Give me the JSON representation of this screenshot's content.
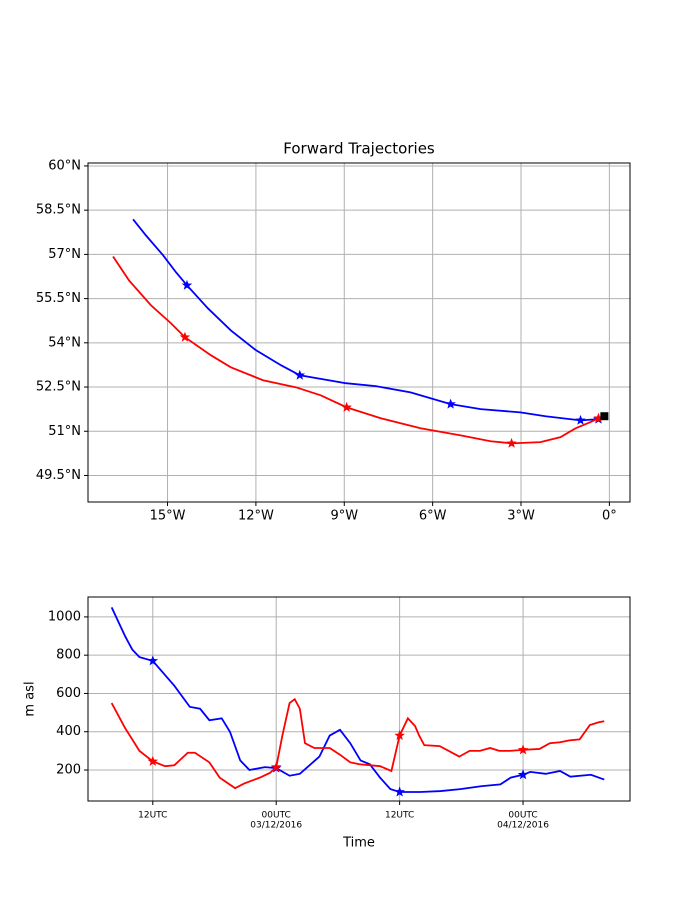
{
  "chart_data": [
    {
      "type": "line",
      "title": "Forward Trajectories",
      "xlim": [
        -17.7,
        0.7
      ],
      "xticks": [
        {
          "value": -15,
          "label": "15°W"
        },
        {
          "value": -12,
          "label": "12°W"
        },
        {
          "value": -9,
          "label": "9°W"
        },
        {
          "value": -6,
          "label": "6°W"
        },
        {
          "value": -3,
          "label": "3°W"
        },
        {
          "value": 0,
          "label": "0°"
        }
      ],
      "ylim": [
        48.6,
        60.1
      ],
      "yticks": [
        {
          "value": 49.5,
          "label": "49.5°N"
        },
        {
          "value": 51,
          "label": "51°N"
        },
        {
          "value": 52.5,
          "label": "52.5°N"
        },
        {
          "value": 54,
          "label": "54°N"
        },
        {
          "value": 55.5,
          "label": "55.5°N"
        },
        {
          "value": 57,
          "label": "57°N"
        },
        {
          "value": 58.5,
          "label": "58.5°N"
        },
        {
          "value": 60,
          "label": "60°N"
        }
      ],
      "grid": true,
      "series": [
        {
          "color": "#0000ff",
          "x": [
            -16.17,
            -15.73,
            -15.15,
            -14.71,
            -14.34,
            -13.63,
            -12.85,
            -12.0,
            -11.15,
            -10.51,
            -8.95,
            -7.93,
            -6.75,
            -5.39,
            -4.37,
            -3.02,
            -2.17,
            -0.98,
            -0.37,
            -0.17
          ],
          "values": [
            58.19,
            57.64,
            56.97,
            56.39,
            55.95,
            55.17,
            54.42,
            53.75,
            53.24,
            52.9,
            52.63,
            52.53,
            52.32,
            51.92,
            51.75,
            51.64,
            51.51,
            51.37,
            51.41,
            51.51
          ],
          "stars": {
            "x": [
              -14.34,
              -10.51,
              -5.39,
              -0.98,
              -0.37
            ],
            "y": [
              55.95,
              52.9,
              51.92,
              51.37,
              51.41
            ]
          }
        },
        {
          "color": "#ff0000",
          "x": [
            -16.85,
            -16.31,
            -15.56,
            -14.88,
            -14.41,
            -13.53,
            -12.85,
            -11.76,
            -10.64,
            -9.8,
            -8.92,
            -7.76,
            -6.41,
            -5.05,
            -4.03,
            -3.32,
            -2.34,
            -1.66,
            -1.15,
            -0.64,
            -0.37,
            -0.17
          ],
          "values": [
            56.93,
            56.12,
            55.27,
            54.66,
            54.19,
            53.58,
            53.17,
            52.73,
            52.49,
            52.22,
            51.81,
            51.44,
            51.1,
            50.86,
            50.66,
            50.59,
            50.63,
            50.8,
            51.1,
            51.31,
            51.44,
            51.51
          ],
          "stars": {
            "x": [
              -14.41,
              -8.92,
              -3.32,
              -0.37
            ],
            "y": [
              54.19,
              51.81,
              50.59,
              51.44
            ]
          }
        }
      ],
      "start": {
        "x": -0.17,
        "y": 51.51,
        "color": "#000000"
      }
    },
    {
      "type": "line",
      "x_label": "Time",
      "y_label": "m asl",
      "xlim": [
        -6.3,
        46.4
      ],
      "xticks": [
        {
          "value": 0,
          "label": [
            "12UTC"
          ]
        },
        {
          "value": 12,
          "label": [
            "00UTC",
            "03/12/2016"
          ]
        },
        {
          "value": 24,
          "label": [
            "12UTC"
          ]
        },
        {
          "value": 36,
          "label": [
            "00UTC",
            "04/12/2016"
          ]
        }
      ],
      "ylim": [
        38,
        1104
      ],
      "yticks": [
        200,
        400,
        600,
        800,
        1000
      ],
      "grid": true,
      "series": [
        {
          "color": "#0000ff",
          "x": [
            -4.0,
            -2.7,
            -2.0,
            -1.3,
            0,
            2.1,
            3.6,
            4.6,
            5.5,
            6.7,
            7.5,
            8.5,
            9.4,
            10.9,
            12,
            13.3,
            14.3,
            16.2,
            17.2,
            18.2,
            19.2,
            20.2,
            21.1,
            22.1,
            23.1,
            24,
            26.0,
            28.0,
            29.9,
            31.9,
            33.8,
            34.8,
            36,
            36.7,
            38.2,
            39.6,
            40.6,
            42.6,
            43.9
          ],
          "values": [
            1050,
            900,
            830,
            790,
            770,
            640,
            530,
            520,
            460,
            470,
            400,
            250,
            200,
            215,
            210,
            170,
            180,
            270,
            380,
            410,
            340,
            250,
            230,
            160,
            100,
            85,
            85,
            90,
            100,
            115,
            125,
            160,
            175,
            190,
            180,
            195,
            165,
            175,
            150
          ],
          "stars": {
            "x": [
              0,
              12,
              24,
              36
            ],
            "y": [
              770,
              210,
              85,
              175
            ]
          }
        },
        {
          "color": "#ff0000",
          "x": [
            -4.0,
            -2.7,
            -1.3,
            0,
            1.2,
            2.1,
            3.4,
            4.1,
            5.5,
            6.5,
            8.0,
            8.9,
            10.4,
            11.4,
            12,
            12.6,
            13.3,
            13.8,
            14.3,
            14.8,
            15.7,
            17.2,
            18.2,
            19.2,
            20.1,
            22.1,
            23.2,
            24,
            24.8,
            25.5,
            25.9,
            26.4,
            27.9,
            29.8,
            30.8,
            31.8,
            32.8,
            33.7,
            34.7,
            36,
            37.6,
            38.6,
            39.6,
            40.5,
            41.5,
            42.5,
            43.4,
            43.9
          ],
          "values": [
            550,
            420,
            300,
            245,
            220,
            225,
            290,
            290,
            240,
            160,
            105,
            130,
            160,
            185,
            215,
            380,
            550,
            570,
            520,
            340,
            315,
            315,
            280,
            240,
            230,
            220,
            195,
            380,
            470,
            430,
            380,
            330,
            325,
            270,
            300,
            300,
            315,
            300,
            300,
            305,
            310,
            340,
            345,
            355,
            360,
            435,
            450,
            455
          ],
          "stars": {
            "x": [
              0,
              12,
              24,
              36
            ],
            "y": [
              245,
              215,
              380,
              305
            ]
          }
        }
      ]
    }
  ]
}
